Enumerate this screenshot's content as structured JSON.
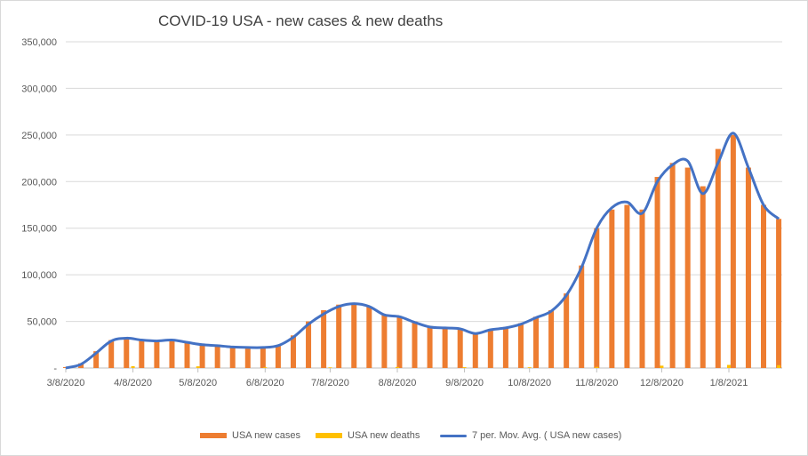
{
  "chart_data": {
    "type": "bar",
    "title": "COVID-19 USA - new cases & new deaths",
    "xlabel": "",
    "ylabel": "",
    "ylim": [
      0,
      350000
    ],
    "grid": true,
    "legend_position": "bottom",
    "y_ticks": [
      "-",
      "50,000",
      "100,000",
      "150,000",
      "200,000",
      "250,000",
      "300,000",
      "350,000"
    ],
    "x_ticks": [
      "3/8/2020",
      "4/8/2020",
      "5/8/2020",
      "6/8/2020",
      "7/8/2020",
      "8/8/2020",
      "9/8/2020",
      "10/8/2020",
      "11/8/2020",
      "12/8/2020",
      "1/8/2021"
    ],
    "series": [
      {
        "name": "USA new cases",
        "kind": "bar",
        "color": "#ED7D31",
        "x": [
          "3/8/2020",
          "3/15/2020",
          "3/22/2020",
          "3/29/2020",
          "4/5/2020",
          "4/12/2020",
          "4/19/2020",
          "4/26/2020",
          "5/3/2020",
          "5/10/2020",
          "5/17/2020",
          "5/24/2020",
          "5/31/2020",
          "6/7/2020",
          "6/14/2020",
          "6/21/2020",
          "6/28/2020",
          "7/5/2020",
          "7/12/2020",
          "7/19/2020",
          "7/26/2020",
          "8/2/2020",
          "8/9/2020",
          "8/16/2020",
          "8/23/2020",
          "8/30/2020",
          "9/6/2020",
          "9/13/2020",
          "9/20/2020",
          "9/27/2020",
          "10/4/2020",
          "10/11/2020",
          "10/18/2020",
          "10/25/2020",
          "11/1/2020",
          "11/8/2020",
          "11/15/2020",
          "11/22/2020",
          "11/29/2020",
          "12/6/2020",
          "12/13/2020",
          "12/20/2020",
          "12/27/2020",
          "1/3/2021",
          "1/10/2021",
          "1/17/2021",
          "1/24/2021",
          "1/31/2021"
        ],
        "values": [
          1000,
          5000,
          18000,
          30000,
          33000,
          31000,
          30000,
          31000,
          28000,
          26000,
          25000,
          23000,
          22000,
          22000,
          24000,
          35000,
          50000,
          62000,
          68000,
          69000,
          66000,
          57000,
          55000,
          50000,
          45000,
          43000,
          42000,
          38000,
          42000,
          44000,
          48000,
          55000,
          62000,
          80000,
          110000,
          150000,
          170000,
          175000,
          170000,
          205000,
          220000,
          215000,
          195000,
          235000,
          250000,
          215000,
          175000,
          160000
        ]
      },
      {
        "name": "USA new deaths",
        "kind": "bar",
        "color": "#FFC000",
        "x": [
          "3/8/2020",
          "4/8/2020",
          "5/8/2020",
          "6/8/2020",
          "7/8/2020",
          "8/8/2020",
          "9/8/2020",
          "10/8/2020",
          "11/8/2020",
          "12/8/2020",
          "1/8/2021",
          "1/31/2021"
        ],
        "values": [
          0,
          2000,
          1800,
          800,
          700,
          1100,
          900,
          800,
          1200,
          2500,
          3300,
          3000
        ]
      },
      {
        "name": "7 per. Mov. Avg. ( USA new cases)",
        "kind": "line",
        "color": "#4472C4",
        "x": [
          "3/8/2020",
          "3/15/2020",
          "3/22/2020",
          "3/29/2020",
          "4/5/2020",
          "4/12/2020",
          "4/19/2020",
          "4/26/2020",
          "5/3/2020",
          "5/10/2020",
          "5/17/2020",
          "5/24/2020",
          "5/31/2020",
          "6/7/2020",
          "6/14/2020",
          "6/21/2020",
          "6/28/2020",
          "7/5/2020",
          "7/12/2020",
          "7/19/2020",
          "7/26/2020",
          "8/2/2020",
          "8/9/2020",
          "8/16/2020",
          "8/23/2020",
          "8/30/2020",
          "9/6/2020",
          "9/13/2020",
          "9/20/2020",
          "9/27/2020",
          "10/4/2020",
          "10/11/2020",
          "10/18/2020",
          "10/25/2020",
          "11/1/2020",
          "11/8/2020",
          "11/15/2020",
          "11/22/2020",
          "11/29/2020",
          "12/6/2020",
          "12/13/2020",
          "12/20/2020",
          "12/27/2020",
          "1/3/2021",
          "1/10/2021",
          "1/17/2021",
          "1/24/2021",
          "1/31/2021"
        ],
        "values": [
          0,
          4000,
          16000,
          29000,
          32000,
          30000,
          29000,
          30000,
          27500,
          25000,
          24000,
          22500,
          22000,
          22000,
          24000,
          33000,
          47000,
          58000,
          66000,
          69000,
          66000,
          57000,
          55000,
          49000,
          44000,
          43000,
          42000,
          37000,
          41000,
          43000,
          47000,
          54000,
          61000,
          78000,
          108000,
          150000,
          172000,
          178000,
          166000,
          200000,
          218000,
          222000,
          187000,
          220000,
          252000,
          215000,
          175000,
          160000
        ]
      }
    ]
  }
}
